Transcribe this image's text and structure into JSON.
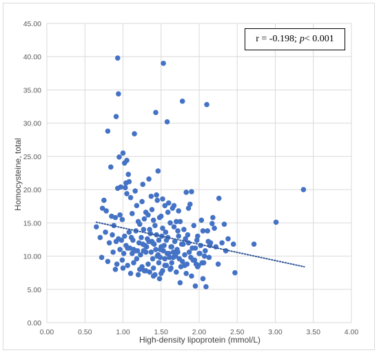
{
  "chart_data": {
    "type": "scatter",
    "title": "",
    "xlabel": "High-density lipoprotein (mmol/L)",
    "ylabel": "Homocysteine, total",
    "xlim": [
      0,
      4
    ],
    "ylim": [
      0,
      45
    ],
    "x_ticks": [
      "0.00",
      "0.50",
      "1.00",
      "1.50",
      "2.00",
      "2.50",
      "3.00",
      "3.50",
      "4.00"
    ],
    "y_ticks": [
      "0.00",
      "5.00",
      "10.00",
      "15.00",
      "20.00",
      "25.00",
      "30.00",
      "35.00",
      "40.00",
      "45.00"
    ],
    "grid": true,
    "point_color": "#4472c4",
    "trendline": {
      "style": "dotted",
      "color": "#2f5597",
      "x": [
        0.65,
        3.38
      ],
      "y": [
        15.1,
        8.4
      ]
    },
    "annotation": {
      "prefix": "r = -0.198; ",
      "p_symbol": "p",
      "suffix": " < 0.001"
    },
    "series": [
      {
        "x": [
          0.93,
          1.53,
          0.94,
          1.43,
          1.78,
          2.1,
          1.58,
          0.8,
          0.91,
          1.15,
          1.0,
          1.05,
          1.02,
          0.95,
          0.84,
          1.46,
          1.07,
          3.37,
          1.55,
          1.83,
          1.9,
          1.08,
          2.26,
          0.75,
          1.03,
          1.05,
          1.1,
          0.97,
          1.6,
          1.18,
          1.38,
          1.25,
          1.45,
          1.65,
          1.88,
          2.03,
          2.17,
          1.3,
          1.5,
          1.7,
          0.73,
          0.78,
          0.85,
          0.88,
          0.9,
          0.96,
          0.99,
          1.12,
          1.2,
          1.22,
          1.28,
          1.33,
          1.35,
          1.4,
          1.42,
          1.48,
          1.52,
          1.56,
          1.62,
          1.67,
          1.72,
          1.75,
          1.8,
          1.85,
          1.93,
          1.98,
          2.05,
          2.12,
          2.2,
          2.3,
          2.38,
          2.45,
          2.72,
          1.02,
          1.08,
          1.13,
          1.17,
          1.24,
          1.27,
          1.32,
          1.36,
          1.39,
          1.44,
          1.47,
          1.51,
          1.54,
          1.59,
          1.63,
          1.68,
          1.73,
          1.77,
          1.82,
          1.86,
          1.91,
          1.97,
          2.02,
          2.08,
          2.15,
          2.22,
          2.35,
          0.98,
          1.06,
          1.14,
          1.21,
          1.29,
          1.34,
          1.41,
          1.49,
          1.57,
          1.64,
          1.71,
          1.79,
          1.87,
          1.95,
          2.01,
          2.07,
          2.14,
          0.91,
          0.96,
          1.01,
          1.09,
          1.16,
          1.23,
          1.31,
          1.37,
          1.43,
          1.46,
          1.53,
          1.58,
          1.61,
          1.66,
          1.69,
          1.74,
          1.81,
          1.89,
          1.94,
          2.0,
          2.06,
          2.13,
          2.25,
          2.47,
          3.01,
          0.65,
          0.7,
          0.77,
          0.82,
          0.86,
          0.94,
          1.04,
          1.11,
          1.19,
          1.26,
          1.3,
          1.38,
          1.45,
          1.5,
          1.55,
          1.6,
          1.66,
          1.72,
          1.78,
          1.84,
          1.92,
          1.99,
          2.04,
          2.11,
          0.72,
          0.8,
          0.87,
          0.92,
          0.99,
          1.06,
          1.14,
          1.18,
          1.25,
          1.33,
          1.4,
          1.47,
          1.52,
          1.57,
          1.63,
          1.7,
          1.76,
          1.83,
          1.9,
          1.96,
          2.09,
          0.9,
          1.0,
          1.1,
          1.2,
          1.3,
          1.4,
          1.5,
          1.62,
          1.75,
          1.95,
          2.05,
          1.35,
          1.42,
          1.48,
          1.55,
          1.28,
          1.22,
          1.37,
          0.93,
          1.04,
          1.16,
          1.26,
          1.34,
          1.44,
          1.52,
          1.59,
          1.67,
          1.73,
          1.86,
          2.18,
          2.33,
          1.12,
          1.27,
          1.39,
          1.49,
          1.64,
          1.81,
          1.98
        ],
        "y": [
          39.8,
          39.0,
          34.4,
          31.6,
          33.3,
          32.8,
          30.2,
          28.8,
          31.0,
          28.4,
          25.5,
          24.4,
          24.0,
          24.9,
          23.4,
          22.8,
          22.3,
          20.0,
          17.6,
          19.6,
          19.7,
          21.2,
          18.7,
          18.4,
          20.3,
          19.4,
          18.8,
          20.4,
          18.0,
          17.6,
          17.0,
          18.2,
          18.4,
          17.2,
          17.8,
          15.4,
          14.9,
          16.6,
          16.0,
          15.2,
          17.2,
          16.8,
          16.0,
          14.6,
          15.8,
          16.2,
          15.5,
          16.4,
          15.2,
          14.8,
          15.6,
          16.2,
          14.0,
          15.4,
          14.6,
          15.8,
          14.2,
          13.6,
          15.0,
          14.4,
          13.8,
          15.2,
          14.0,
          13.2,
          14.6,
          13.0,
          13.8,
          12.2,
          14.2,
          12.0,
          12.6,
          11.8,
          11.8,
          13.0,
          13.6,
          12.4,
          13.8,
          12.8,
          14.0,
          12.6,
          13.4,
          12.0,
          13.2,
          12.4,
          13.0,
          11.6,
          12.8,
          11.4,
          12.2,
          13.0,
          11.8,
          12.6,
          12.0,
          11.2,
          12.4,
          11.6,
          10.8,
          12.0,
          11.4,
          10.8,
          12.4,
          11.2,
          11.0,
          12.0,
          11.6,
          12.2,
          11.8,
          11.0,
          12.4,
          11.4,
          11.0,
          11.8,
          10.6,
          11.2,
          10.4,
          10.0,
          11.6,
          12.2,
          11.0,
          10.4,
          11.2,
          10.8,
          10.2,
          11.4,
          10.6,
          11.0,
          10.2,
          10.8,
          10.4,
          9.8,
          10.6,
          10.0,
          9.6,
          10.2,
          9.8,
          9.4,
          10.4,
          9.0,
          9.8,
          8.8,
          7.5,
          15.1,
          14.4,
          12.8,
          13.6,
          12.0,
          13.2,
          12.6,
          11.6,
          12.8,
          10.8,
          11.8,
          10.6,
          12.2,
          10.0,
          11.4,
          9.6,
          10.4,
          9.8,
          10.6,
          9.2,
          8.8,
          9.4,
          8.6,
          9.0,
          13.8,
          9.8,
          9.2,
          10.6,
          8.8,
          9.4,
          8.6,
          9.0,
          9.6,
          8.4,
          8.8,
          8.2,
          9.0,
          7.8,
          8.6,
          8.2,
          7.6,
          8.4,
          7.4,
          7.0,
          8.8,
          5.4,
          8.0,
          8.2,
          7.4,
          7.2,
          7.8,
          7.0,
          7.4,
          8.0,
          6.0,
          5.5,
          6.6,
          7.6,
          7.2,
          6.6,
          8.6,
          7.8,
          8.0,
          19.0,
          20.2,
          21.0,
          19.8,
          20.8,
          21.6,
          19.2,
          18.6,
          16.6,
          17.6,
          16.8,
          17.2,
          15.8,
          14.8,
          10.4,
          10.8,
          9.6,
          9.8,
          9.0,
          8.6,
          8.4
        ]
      }
    ]
  }
}
